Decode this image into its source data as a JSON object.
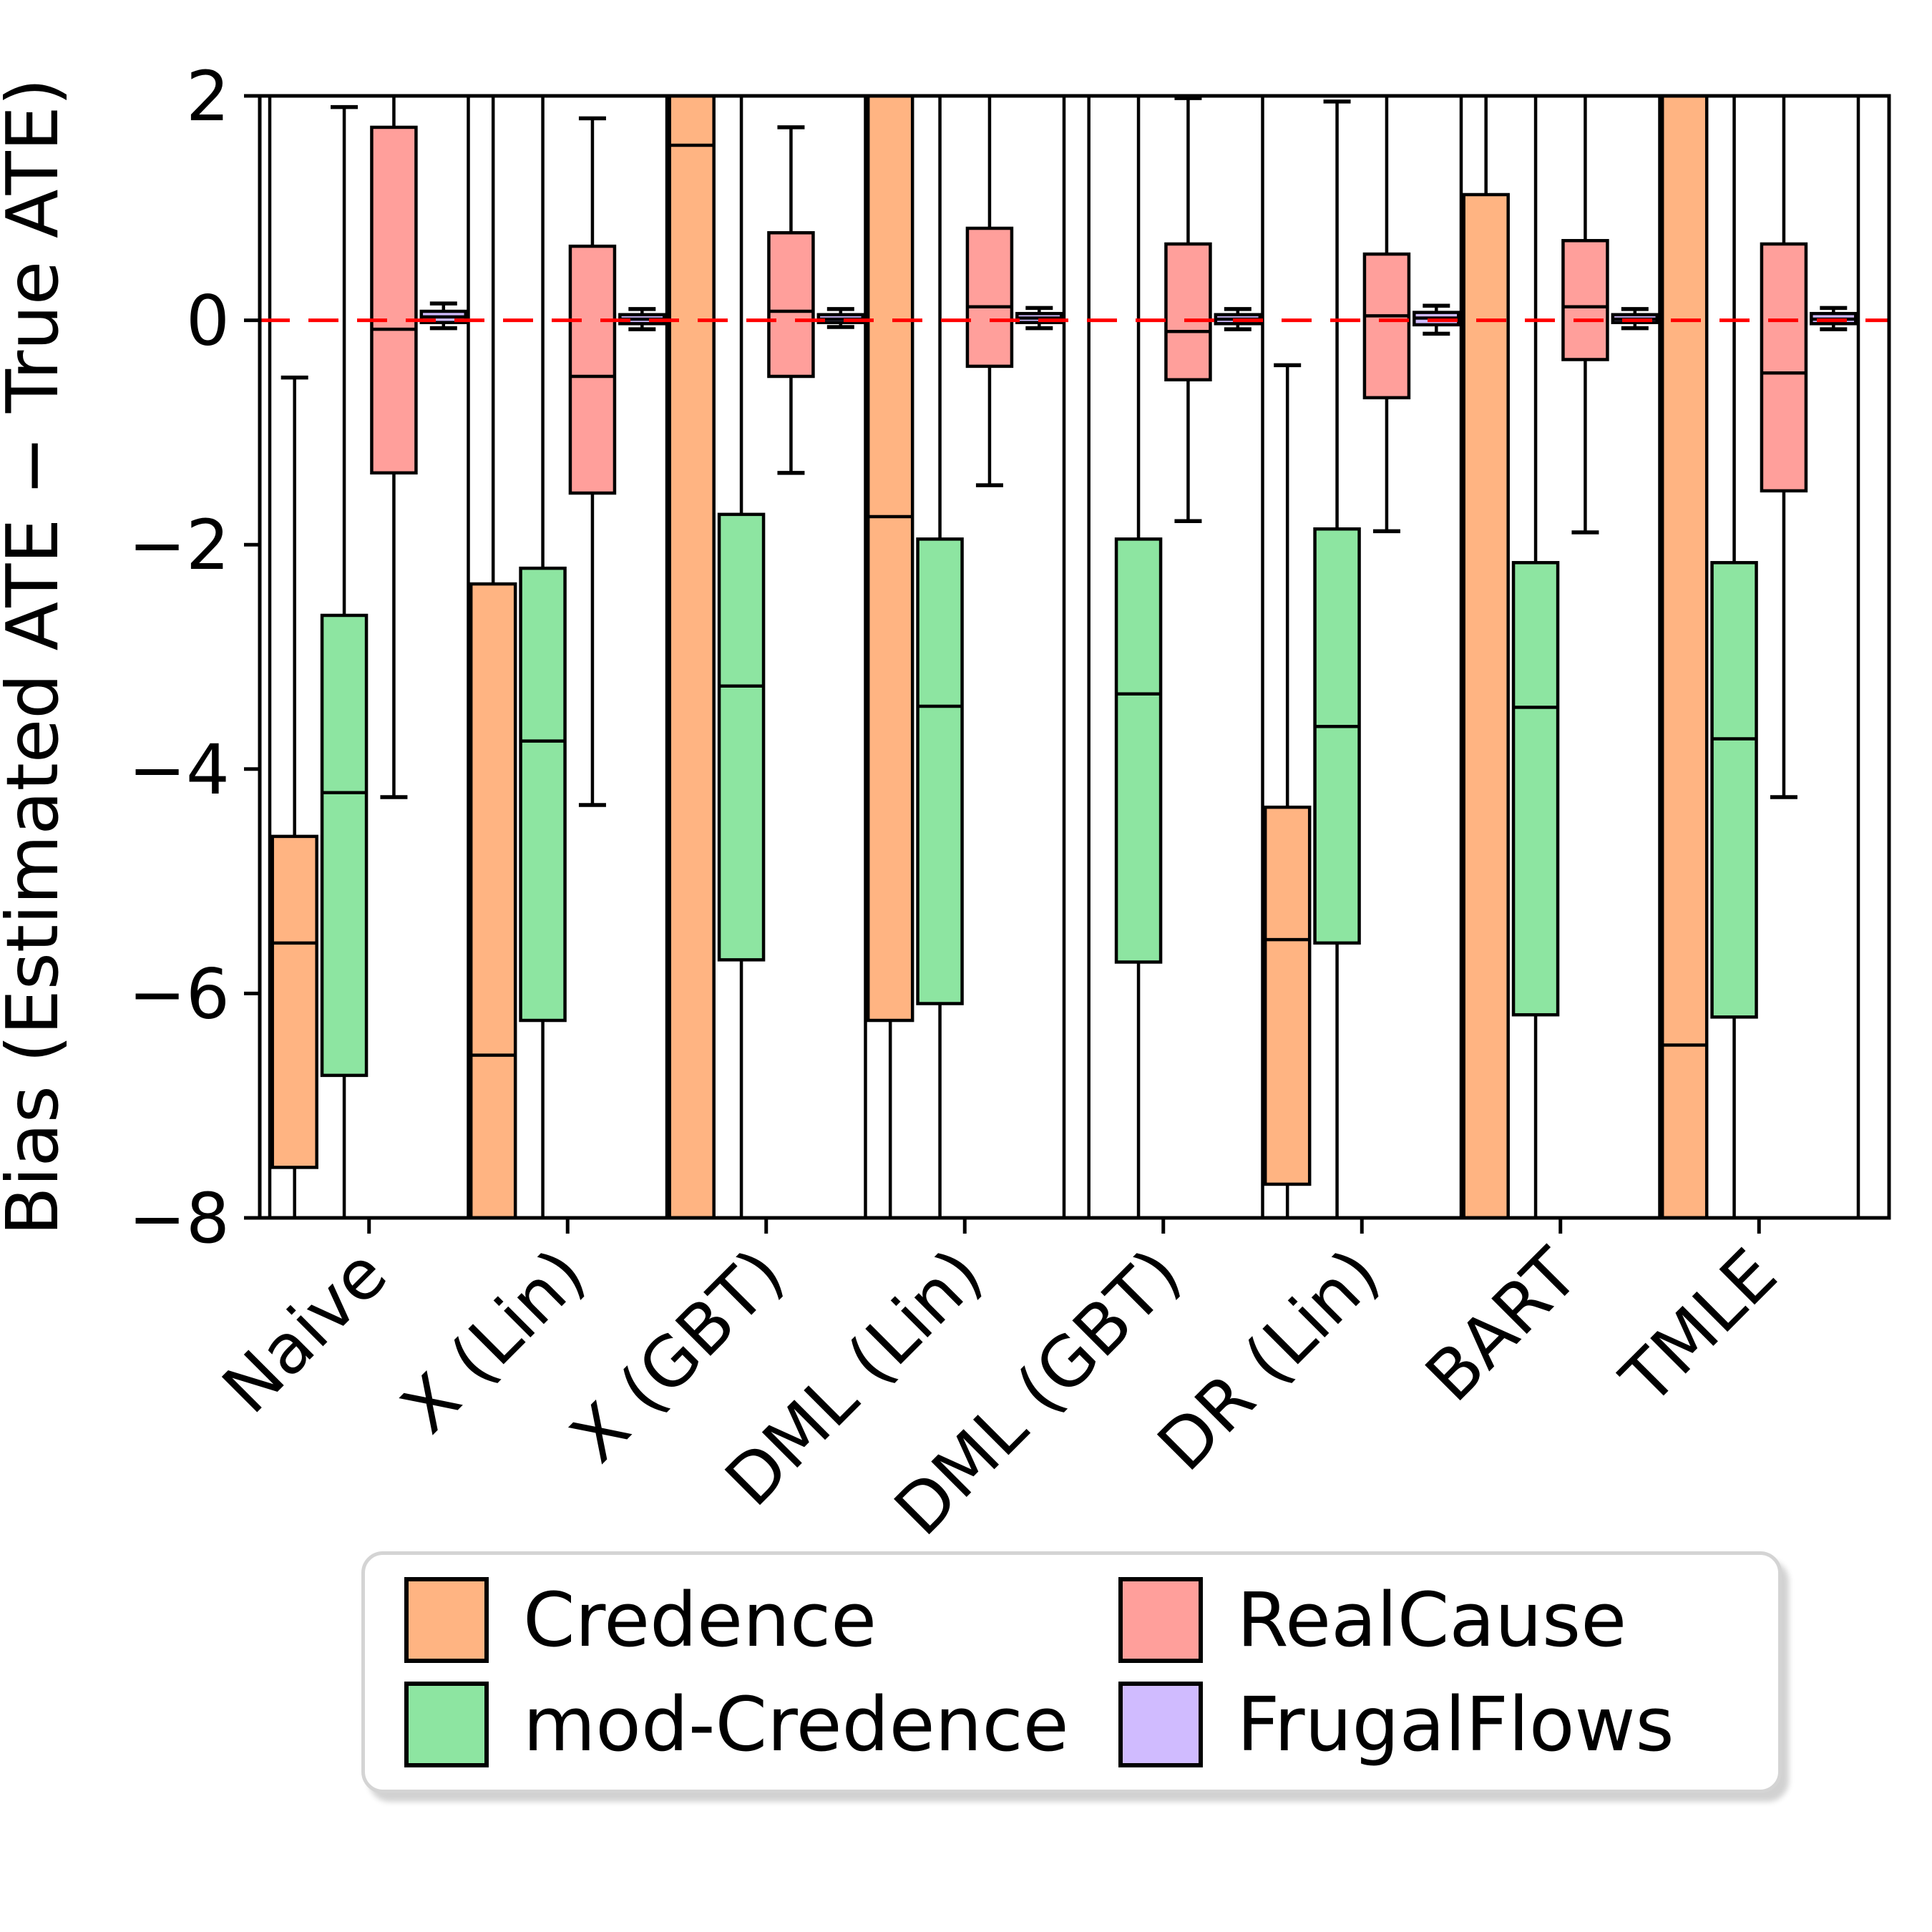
{
  "figure": {
    "background": "#ffffff",
    "axis_color": "#000000"
  },
  "chart_data": {
    "type": "grouped_boxplot",
    "title": "",
    "xlabel": "",
    "ylabel": "Bias (Estimated ATE − True ATE)",
    "ylim": [
      -8,
      2
    ],
    "yticks": [
      2,
      0,
      -2,
      -4,
      -6,
      -8
    ],
    "ytick_labels": [
      "2",
      "0",
      "−2",
      "−4",
      "−6",
      "−8"
    ],
    "categories": [
      "Naive",
      "X (Lin)",
      "X (GBT)",
      "DML (Lin)",
      "DML (GBT)",
      "DR (Lin)",
      "BART",
      "TMLE"
    ],
    "grid": false,
    "group_separators": true,
    "reference_line": {
      "y": 0,
      "color": "#ff0000",
      "style": "dashed"
    },
    "legend_position": "bottom",
    "clipping_note": "five-number summaries [whisker_low, q1, median, q3, whisker_high]; values beyond ylim (-8..2) are clipped out of view in the figure",
    "series": [
      {
        "name": "Credence",
        "color": "#FFB482",
        "boxes": [
          [
            -9.0,
            -7.55,
            -5.55,
            -4.6,
            -0.51
          ],
          [
            -9.0,
            -8.6,
            -6.55,
            -2.35,
            2.5
          ],
          [
            -9.5,
            -8.6,
            1.56,
            2.4,
            2.6
          ],
          [
            -9.0,
            -6.24,
            -1.75,
            2.4,
            2.6
          ],
          [
            -10.0,
            -9.5,
            -9.0,
            -8.5,
            2.5
          ],
          [
            -9.0,
            -7.7,
            -5.52,
            -4.34,
            -0.4
          ],
          [
            -9.5,
            -8.6,
            -8.3,
            1.12,
            2.5
          ],
          [
            -9.5,
            -8.6,
            -6.46,
            2.4,
            2.6
          ]
        ]
      },
      {
        "name": "mod-Credence",
        "color": "#8DE5A1",
        "boxes": [
          [
            -9.0,
            -6.73,
            -4.21,
            -2.63,
            1.9
          ],
          [
            -9.0,
            -6.24,
            -3.75,
            -2.21,
            2.4
          ],
          [
            -9.0,
            -5.7,
            -3.26,
            -1.73,
            2.4
          ],
          [
            -9.0,
            -6.09,
            -3.44,
            -1.95,
            2.4
          ],
          [
            -9.0,
            -5.72,
            -3.33,
            -1.95,
            2.4
          ],
          [
            -9.0,
            -5.55,
            -3.62,
            -1.86,
            1.95
          ],
          [
            -9.0,
            -6.19,
            -3.45,
            -2.16,
            2.4
          ],
          [
            -9.0,
            -6.21,
            -3.73,
            -2.16,
            2.4
          ]
        ]
      },
      {
        "name": "RealCause",
        "color": "#FF9F9B",
        "boxes": [
          [
            -4.25,
            -1.36,
            -0.08,
            1.72,
            2.4
          ],
          [
            -4.32,
            -1.54,
            -0.5,
            0.66,
            1.8
          ],
          [
            -1.36,
            -0.5,
            0.08,
            0.78,
            1.72
          ],
          [
            -1.47,
            -0.41,
            0.12,
            0.82,
            2.4
          ],
          [
            -1.79,
            -0.53,
            -0.1,
            0.68,
            1.98
          ],
          [
            -1.88,
            -0.69,
            0.04,
            0.59,
            2.4
          ],
          [
            -1.89,
            -0.35,
            0.12,
            0.71,
            2.4
          ],
          [
            -4.25,
            -1.52,
            -0.47,
            0.68,
            2.4
          ]
        ]
      },
      {
        "name": "FrugalFlows",
        "color": "#D0BBFF",
        "boxes": [
          [
            -0.07,
            -0.02,
            0.03,
            0.08,
            0.15
          ],
          [
            -0.08,
            -0.03,
            0.01,
            0.05,
            0.1
          ],
          [
            -0.06,
            -0.02,
            0.01,
            0.05,
            0.1
          ],
          [
            -0.07,
            -0.02,
            0.02,
            0.06,
            0.11
          ],
          [
            -0.08,
            -0.03,
            0.01,
            0.05,
            0.1
          ],
          [
            -0.12,
            -0.04,
            0.02,
            0.07,
            0.13
          ],
          [
            -0.07,
            -0.02,
            0.01,
            0.05,
            0.1
          ],
          [
            -0.08,
            -0.03,
            0.01,
            0.06,
            0.11
          ]
        ]
      }
    ]
  },
  "legend": {
    "entries": [
      "Credence",
      "mod-Credence",
      "RealCause",
      "FrugalFlows"
    ]
  }
}
